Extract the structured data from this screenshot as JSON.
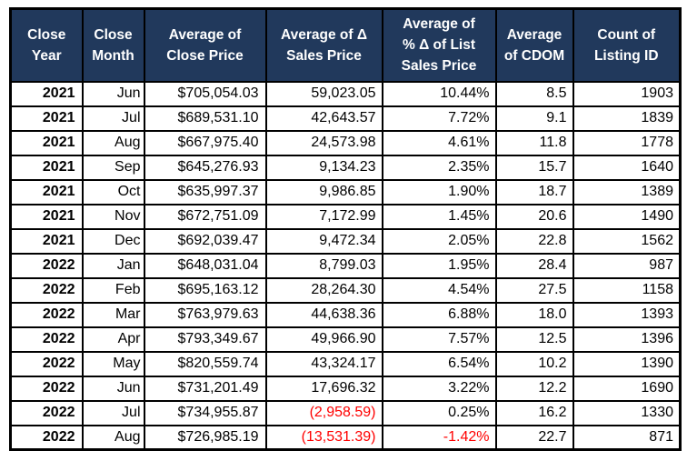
{
  "colors": {
    "header_bg": "#21395C",
    "header_text": "#FFFFFF",
    "cell_text": "#000000",
    "negative": "#FF0000",
    "border": "#000000",
    "page_bg": "#FFFFFF"
  },
  "chart_data": {
    "type": "table",
    "title": "Pivot table: monthly real-estate close price summary",
    "columns": [
      {
        "id": "close_year",
        "label": "Close\nYear"
      },
      {
        "id": "close_month",
        "label": "Close\nMonth"
      },
      {
        "id": "avg_close_price",
        "label": "Average of\nClose Price"
      },
      {
        "id": "avg_delta_sales_price",
        "label": "Average of Δ\nSales Price"
      },
      {
        "id": "avg_pct_delta_list",
        "label": "Average of\n% Δ of List\nSales Price"
      },
      {
        "id": "avg_cdom",
        "label": "Average\nof CDOM"
      },
      {
        "id": "count_listing_id",
        "label": "Count of\nListing ID"
      }
    ],
    "rows": [
      [
        "2021",
        "Jun",
        "$705,054.03",
        "59,023.05",
        "10.44%",
        "8.5",
        "1903"
      ],
      [
        "2021",
        "Jul",
        "$689,531.10",
        "42,643.57",
        "7.72%",
        "9.1",
        "1839"
      ],
      [
        "2021",
        "Aug",
        "$667,975.40",
        "24,573.98",
        "4.61%",
        "11.8",
        "1778"
      ],
      [
        "2021",
        "Sep",
        "$645,276.93",
        "9,134.23",
        "2.35%",
        "15.7",
        "1640"
      ],
      [
        "2021",
        "Oct",
        "$635,997.37",
        "9,986.85",
        "1.90%",
        "18.7",
        "1389"
      ],
      [
        "2021",
        "Nov",
        "$672,751.09",
        "7,172.99",
        "1.45%",
        "20.6",
        "1490"
      ],
      [
        "2021",
        "Dec",
        "$692,039.47",
        "9,472.34",
        "2.05%",
        "22.8",
        "1562"
      ],
      [
        "2022",
        "Jan",
        "$648,031.04",
        "8,799.03",
        "1.95%",
        "28.4",
        "987"
      ],
      [
        "2022",
        "Feb",
        "$695,163.12",
        "28,264.30",
        "4.54%",
        "27.5",
        "1158"
      ],
      [
        "2022",
        "Mar",
        "$763,979.63",
        "44,638.36",
        "6.88%",
        "18.0",
        "1393"
      ],
      [
        "2022",
        "Apr",
        "$793,349.67",
        "49,966.90",
        "7.57%",
        "12.5",
        "1396"
      ],
      [
        "2022",
        "May",
        "$820,559.74",
        "43,324.17",
        "6.54%",
        "10.2",
        "1390"
      ],
      [
        "2022",
        "Jun",
        "$731,201.49",
        "17,696.32",
        "3.22%",
        "12.2",
        "1690"
      ],
      [
        "2022",
        "Jul",
        "$734,955.87",
        "(2,958.59)",
        "0.25%",
        "16.2",
        "1330"
      ],
      [
        "2022",
        "Aug",
        "$726,985.19",
        "(13,531.39)",
        "-1.42%",
        "22.7",
        "871"
      ]
    ]
  }
}
